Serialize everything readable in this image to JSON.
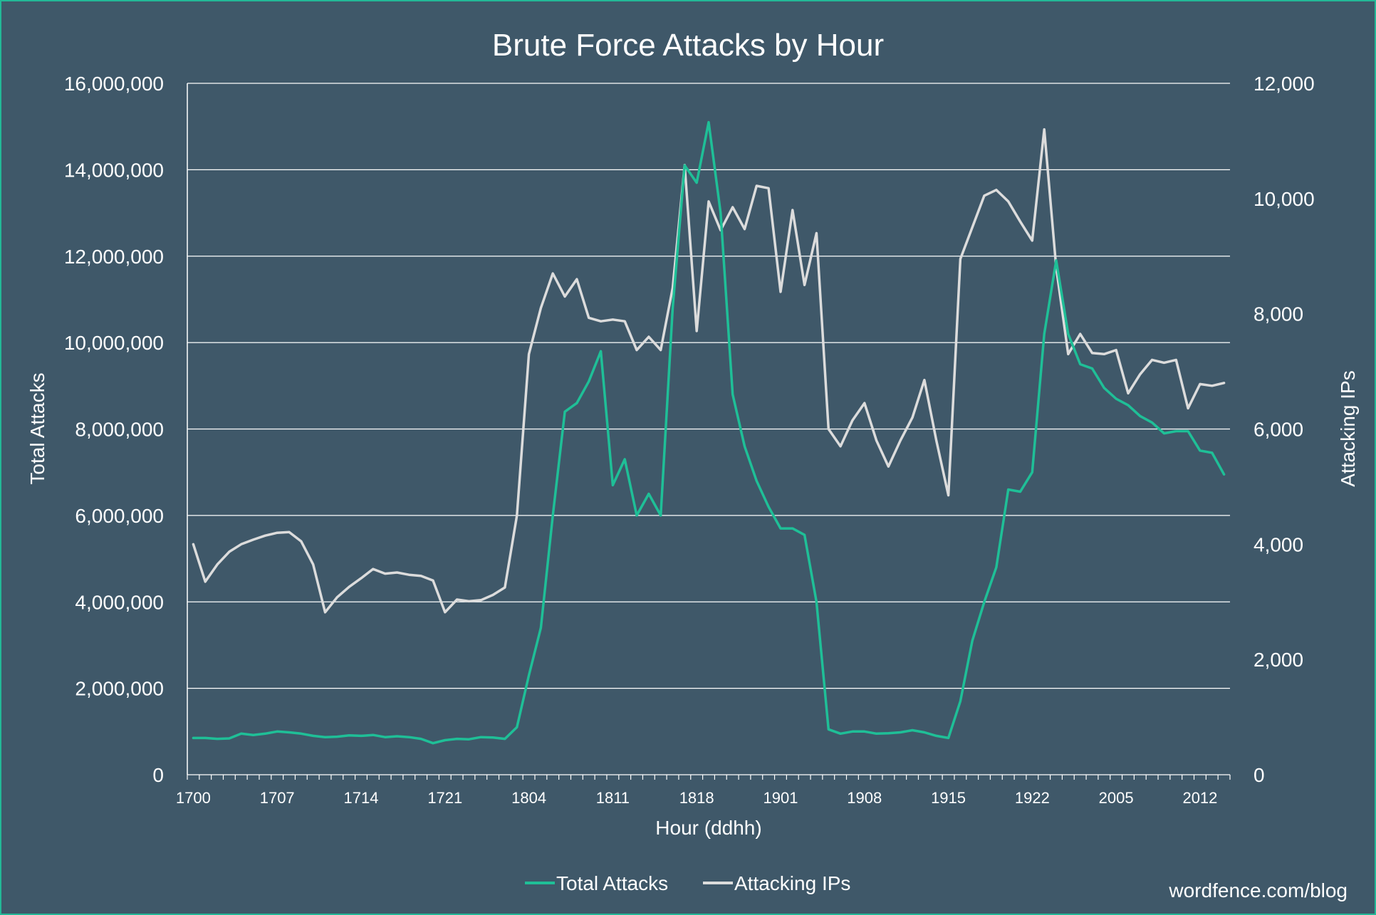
{
  "chart_data": {
    "type": "line",
    "title": "Brute Force Attacks by Hour",
    "xlabel": "Hour (ddhh)",
    "ylabel_left": "Total Attacks",
    "ylabel_right": "Attacking IPs",
    "ylim_left": [
      0,
      16000000
    ],
    "ylim_right": [
      0,
      12000
    ],
    "yticks_left": [
      "0",
      "2,000,000",
      "4,000,000",
      "6,000,000",
      "8,000,000",
      "10,000,000",
      "12,000,000",
      "14,000,000",
      "16,000,000"
    ],
    "yticks_right": [
      "0",
      "2,000",
      "4,000",
      "6,000",
      "8,000",
      "10,000",
      "12,000"
    ],
    "x_tick_labels": [
      "1700",
      "1707",
      "1714",
      "1721",
      "1804",
      "1811",
      "1818",
      "1901",
      "1908",
      "1915",
      "1922",
      "2005",
      "2012"
    ],
    "grid": true,
    "legend_position": "bottom",
    "x": [
      "1700",
      "1701",
      "1702",
      "1703",
      "1704",
      "1705",
      "1706",
      "1707",
      "1708",
      "1709",
      "1710",
      "1711",
      "1712",
      "1713",
      "1714",
      "1715",
      "1716",
      "1717",
      "1718",
      "1719",
      "1720",
      "1721",
      "1722",
      "1723",
      "1800",
      "1801",
      "1802",
      "1803",
      "1804",
      "1805",
      "1806",
      "1807",
      "1808",
      "1809",
      "1810",
      "1811",
      "1812",
      "1813",
      "1814",
      "1815",
      "1816",
      "1817",
      "1818",
      "1819",
      "1820",
      "1821",
      "1822",
      "1823",
      "1900",
      "1901",
      "1902",
      "1903",
      "1904",
      "1905",
      "1906",
      "1907",
      "1908",
      "1909",
      "1910",
      "1911",
      "1912",
      "1913",
      "1914",
      "1915",
      "1916",
      "1917",
      "1918",
      "1919",
      "1920",
      "1921",
      "1922",
      "1923",
      "2000",
      "2001",
      "2002",
      "2003",
      "2004",
      "2005",
      "2006",
      "2007",
      "2008",
      "2009",
      "2010",
      "2011",
      "2012",
      "2013",
      "2014"
    ],
    "series": [
      {
        "name": "Total Attacks",
        "axis": "left",
        "color": "#1fbf97",
        "values": [
          850000,
          850000,
          830000,
          840000,
          950000,
          920000,
          950000,
          1000000,
          980000,
          950000,
          900000,
          870000,
          880000,
          910000,
          900000,
          920000,
          870000,
          890000,
          870000,
          830000,
          730000,
          800000,
          830000,
          820000,
          870000,
          860000,
          830000,
          1100000,
          2300000,
          3400000,
          6000000,
          8400000,
          8600000,
          9100000,
          9800000,
          6700000,
          7300000,
          6000000,
          6500000,
          6000000,
          10800000,
          14100000,
          13700000,
          15100000,
          13000000,
          8800000,
          7600000,
          6800000,
          6200000,
          5700000,
          5700000,
          5550000,
          4000000,
          1050000,
          950000,
          1000000,
          1000000,
          950000,
          960000,
          980000,
          1030000,
          980000,
          900000,
          850000,
          1700000,
          3100000,
          4000000,
          4800000,
          6600000,
          6550000,
          7000000,
          10200000,
          11900000,
          10200000,
          9500000,
          9400000,
          8950000,
          8700000,
          8550000,
          8300000,
          8150000,
          7900000,
          7950000,
          7950000,
          7500000,
          7450000,
          6950000
        ]
      },
      {
        "name": "Attacking IPs",
        "axis": "right",
        "color": "#dcdcdc",
        "values": [
          4000,
          3350,
          3650,
          3870,
          4000,
          4080,
          4150,
          4200,
          4210,
          4050,
          3650,
          2820,
          3080,
          3260,
          3410,
          3570,
          3490,
          3510,
          3470,
          3450,
          3370,
          2820,
          3040,
          3010,
          3030,
          3120,
          3250,
          4500,
          7300,
          8100,
          8700,
          8300,
          8600,
          7930,
          7870,
          7900,
          7870,
          7370,
          7600,
          7370,
          8450,
          10580,
          7700,
          9950,
          9450,
          9850,
          9470,
          10220,
          10180,
          8380,
          9800,
          8500,
          9400,
          6000,
          5700,
          6150,
          6450,
          5800,
          5350,
          5800,
          6200,
          6850,
          5800,
          4850,
          8950,
          9500,
          10050,
          10150,
          9950,
          9600,
          9270,
          11200,
          8800,
          7300,
          7650,
          7320,
          7300,
          7370,
          6620,
          6950,
          7200,
          7150,
          7200,
          6360,
          6780,
          6750,
          6800
        ]
      }
    ],
    "credit": "wordfence.com/blog"
  }
}
